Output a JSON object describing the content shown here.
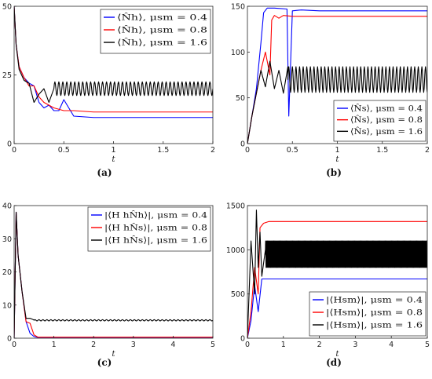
{
  "chart_data": [
    {
      "panel": "(a)",
      "type": "line",
      "xlabel": "t",
      "xlim": [
        0,
        2
      ],
      "ylim": [
        0,
        50
      ],
      "xticks": [
        "0",
        "0.5",
        "1",
        "1.5",
        "2"
      ],
      "yticks": [
        "0",
        "25",
        "50"
      ],
      "legend_position": "top-right",
      "series": [
        {
          "name": "⟨N̂h⟩, μsm = 0.4",
          "color": "#0000ff",
          "x": [
            0,
            0.02,
            0.05,
            0.1,
            0.15,
            0.2,
            0.25,
            0.3,
            0.35,
            0.4,
            0.45,
            0.5,
            0.6,
            0.8,
            1.0,
            1.5,
            2.0
          ],
          "y": [
            50,
            36,
            28,
            24,
            22,
            21,
            15,
            13,
            14,
            12,
            12,
            16,
            10,
            9.5,
            9.5,
            9.5,
            9.5
          ]
        },
        {
          "name": "⟨N̂h⟩, μsm = 0.8",
          "color": "#ff0000",
          "x": [
            0,
            0.02,
            0.05,
            0.1,
            0.15,
            0.2,
            0.25,
            0.3,
            0.35,
            0.4,
            0.5,
            0.6,
            0.8,
            1.0,
            1.5,
            2.0
          ],
          "y": [
            50,
            36,
            28,
            24,
            21,
            21,
            17,
            15,
            14,
            13,
            12,
            12,
            11.5,
            11.5,
            11.5,
            11.5
          ]
        },
        {
          "name": "⟨N̂h⟩, μsm = 1.6",
          "color": "#000000",
          "oscillation": {
            "start": 0.4,
            "center": 20,
            "amplitude": 2.5,
            "period": 0.04
          },
          "x": [
            0,
            0.02,
            0.05,
            0.1,
            0.15,
            0.2,
            0.25,
            0.3,
            0.35,
            0.4
          ],
          "y": [
            50,
            36,
            27,
            23,
            22,
            15,
            18,
            20,
            15,
            20
          ]
        }
      ]
    },
    {
      "panel": "(b)",
      "type": "line",
      "xlabel": "t",
      "xlim": [
        0,
        2
      ],
      "ylim": [
        0,
        150
      ],
      "xticks": [
        "0",
        "0.5",
        "1",
        "1.5",
        "2"
      ],
      "yticks": [
        "0",
        "50",
        "100",
        "150"
      ],
      "legend_position": "bottom-right",
      "series": [
        {
          "name": "⟨N̂s⟩, μsm = 0.4",
          "color": "#0000ff",
          "x": [
            0,
            0.05,
            0.1,
            0.15,
            0.18,
            0.22,
            0.3,
            0.44,
            0.46,
            0.5,
            0.6,
            0.8,
            1.0,
            1.5,
            2.0
          ],
          "y": [
            0,
            30,
            60,
            110,
            143,
            148,
            148,
            147,
            30,
            145,
            146,
            145,
            145,
            145,
            145
          ]
        },
        {
          "name": "⟨N̂s⟩, μsm = 0.8",
          "color": "#ff0000",
          "x": [
            0,
            0.05,
            0.1,
            0.15,
            0.2,
            0.25,
            0.27,
            0.3,
            0.35,
            0.4,
            0.5,
            1.0,
            1.5,
            2.0
          ],
          "y": [
            0,
            30,
            55,
            80,
            100,
            75,
            135,
            140,
            137,
            140,
            139,
            139,
            139,
            139
          ]
        },
        {
          "name": "⟨N̂s⟩, μsm = 1.6",
          "color": "#000000",
          "oscillation": {
            "start": 0.45,
            "center": 70,
            "amplitude": 14,
            "period": 0.04
          },
          "x": [
            0,
            0.05,
            0.1,
            0.15,
            0.2,
            0.25,
            0.3,
            0.35,
            0.4,
            0.45
          ],
          "y": [
            0,
            30,
            55,
            80,
            62,
            90,
            60,
            80,
            55,
            84
          ]
        }
      ]
    },
    {
      "panel": "(c)",
      "type": "line",
      "xlabel": "t",
      "xlim": [
        0,
        5
      ],
      "ylim": [
        0,
        40
      ],
      "xticks": [
        "0",
        "1",
        "2",
        "3",
        "4",
        "5"
      ],
      "yticks": [
        "0",
        "10",
        "20",
        "30",
        "40"
      ],
      "legend_position": "top-right",
      "series": [
        {
          "name": "|⟨H hN̂h⟩|, μsm = 0.4",
          "color": "#0000ff",
          "x": [
            0,
            0.05,
            0.1,
            0.2,
            0.3,
            0.4,
            0.5,
            0.6,
            5.0
          ],
          "y": [
            0,
            38,
            25,
            14,
            5,
            1.5,
            0.5,
            0.2,
            0.2
          ]
        },
        {
          "name": "|⟨H hN̂s⟩|, μsm = 0.8",
          "color": "#ff0000",
          "x": [
            0,
            0.05,
            0.1,
            0.2,
            0.3,
            0.4,
            0.5,
            0.6,
            5.0
          ],
          "y": [
            0,
            38,
            25,
            14,
            5,
            4.5,
            1,
            0.3,
            0.3
          ]
        },
        {
          "name": "|⟨H hN̂s⟩|, μsm = 1.6",
          "color": "#000000",
          "oscillation": {
            "start": 0.5,
            "center": 5.4,
            "amplitude": 0.2,
            "period": 0.1
          },
          "x": [
            0,
            0.05,
            0.1,
            0.2,
            0.3,
            0.4,
            0.5
          ],
          "y": [
            0,
            38,
            25,
            14,
            6,
            6,
            5.5
          ]
        }
      ]
    },
    {
      "panel": "(d)",
      "type": "line",
      "xlabel": "t",
      "xlim": [
        0,
        5
      ],
      "ylim": [
        0,
        1500
      ],
      "xticks": [
        "0",
        "1",
        "2",
        "3",
        "4",
        "5"
      ],
      "yticks": [
        "0",
        "500",
        "1000",
        "1500"
      ],
      "legend_position": "bottom-right",
      "series": [
        {
          "name": "|⟨Hsm⟩|, μsm = 0.4",
          "color": "#0000ff",
          "x": [
            0,
            0.1,
            0.2,
            0.3,
            0.4,
            0.5,
            1.0,
            5.0
          ],
          "y": [
            0,
            200,
            600,
            300,
            670,
            670,
            670,
            670
          ]
        },
        {
          "name": "|⟨Hsm⟩|, μsm = 0.8",
          "color": "#ff0000",
          "x": [
            0,
            0.1,
            0.2,
            0.3,
            0.35,
            0.45,
            0.6,
            1.0,
            5.0
          ],
          "y": [
            0,
            300,
            800,
            500,
            1250,
            1300,
            1320,
            1320,
            1320
          ]
        },
        {
          "name": "|⟨Hsm⟩|, μsm = 1.6",
          "color": "#000000",
          "oscillation": {
            "start": 0.5,
            "center": 950,
            "amplitude": 150,
            "period": 0.025
          },
          "x": [
            0,
            0.1,
            0.2,
            0.25,
            0.3,
            0.35,
            0.4,
            0.5
          ],
          "y": [
            0,
            1100,
            500,
            1450,
            800,
            1200,
            700,
            1000
          ]
        }
      ]
    }
  ]
}
